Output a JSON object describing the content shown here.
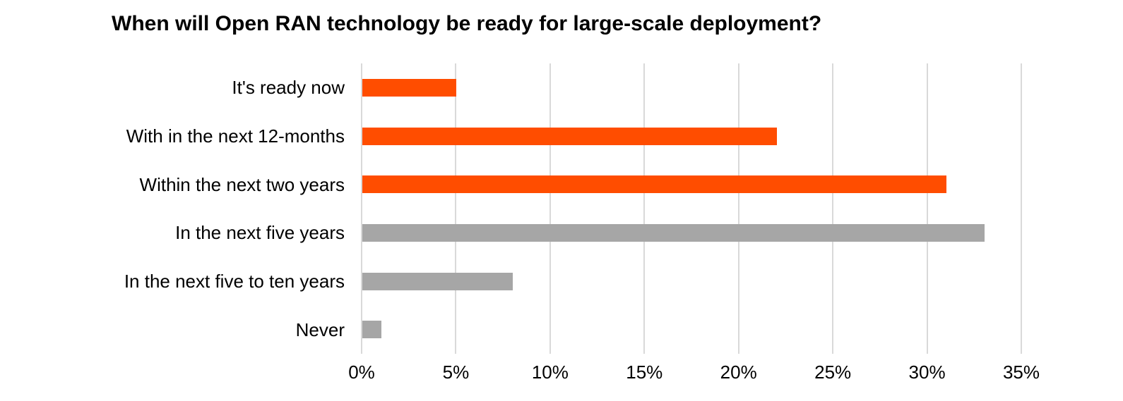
{
  "chart_data": {
    "type": "bar",
    "orientation": "horizontal",
    "title": "When will Open RAN technology be ready for large-scale deployment?",
    "categories": [
      "It's ready now",
      "With in the next 12-months",
      "Within the next two years",
      "In the next five years",
      "In the next five to ten years",
      "Never"
    ],
    "values": [
      5,
      22,
      31,
      33,
      8,
      1
    ],
    "unit": "%",
    "bar_colors": [
      "#FF4D00",
      "#FF4D00",
      "#FF4D00",
      "#A6A6A6",
      "#A6A6A6",
      "#A6A6A6"
    ],
    "xlim": [
      0,
      35
    ],
    "x_ticks": [
      "0%",
      "5%",
      "10%",
      "15%",
      "20%",
      "25%",
      "30%",
      "35%"
    ],
    "x_tick_values": [
      0,
      5,
      10,
      15,
      20,
      25,
      30,
      35
    ],
    "grid": "vertical-only",
    "gridline_color": "#D9D9D9",
    "background_color": "#FFFFFF",
    "text_color": "#000000",
    "legend": "none",
    "data_labels": "none"
  }
}
